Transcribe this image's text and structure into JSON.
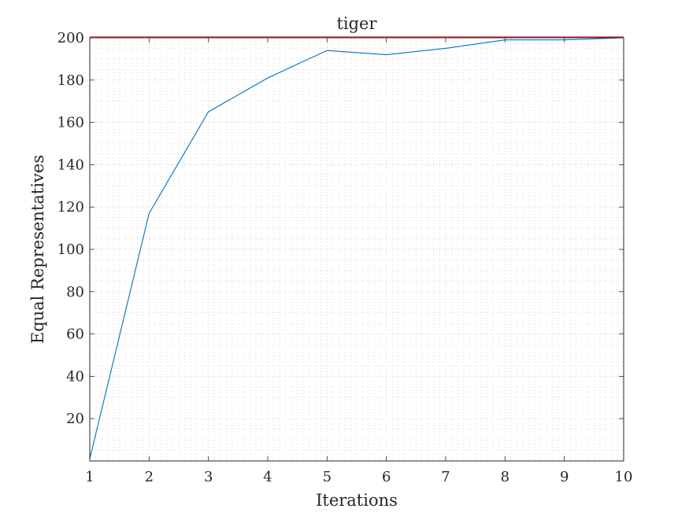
{
  "chart_data": {
    "type": "line",
    "title": "tiger",
    "xlabel": "Iterations",
    "ylabel": "Equal Representatives",
    "xlim": [
      1,
      10
    ],
    "ylim": [
      0,
      200
    ],
    "xticks": [
      1,
      2,
      3,
      4,
      5,
      6,
      7,
      8,
      9,
      10
    ],
    "yticks": [
      20,
      40,
      60,
      80,
      100,
      120,
      140,
      160,
      180,
      200
    ],
    "grid": true,
    "minor_grid": true,
    "legend": "none",
    "series": [
      {
        "color": "#0072bd",
        "x": [
          1,
          2,
          3,
          4,
          5,
          6,
          7,
          8,
          9,
          10
        ],
        "y": [
          1,
          117,
          165,
          181,
          194,
          192,
          195,
          199,
          199,
          200
        ]
      }
    ],
    "reference_line": {
      "y": 200,
      "color": "#d62728"
    }
  }
}
